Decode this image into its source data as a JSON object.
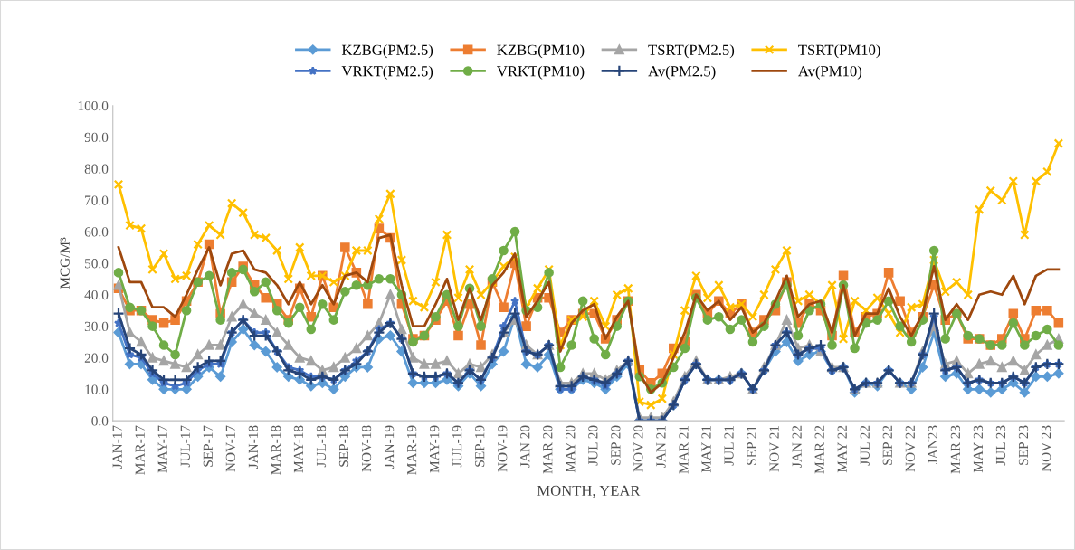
{
  "chart_data": {
    "type": "line",
    "xlabel": "MONTH, YEAR",
    "ylabel": "MCG/M³",
    "categories": [
      "JAN-17",
      null,
      "MAR-17",
      null,
      "MAY-17",
      null,
      "JUL-17",
      null,
      "SEP-17",
      null,
      "NOV-17",
      null,
      "JAN-18",
      null,
      "MAR-18",
      null,
      "MAY-18",
      null,
      "JUL-18",
      null,
      "SEP-18",
      null,
      "NOV-18",
      null,
      "JAN-19",
      null,
      "MAR-19",
      null,
      "MAY-19",
      null,
      "JUL-19",
      null,
      "SEP-19",
      null,
      "NOV-19",
      null,
      "JAN 20",
      null,
      "MAR 20",
      null,
      "MAY 20",
      null,
      "JUL 20",
      null,
      "SEP 20",
      null,
      "NOV 20",
      null,
      "JAN 21",
      null,
      "MAR 21",
      null,
      "MAY 21",
      null,
      "JUL 21",
      null,
      "SEP 21",
      null,
      "NOV 21",
      null,
      "JAN 22",
      null,
      "MAR 22",
      null,
      "MAY 22",
      null,
      "JUL 22",
      null,
      "SEP 22",
      null,
      "NOV 22",
      null,
      "JAN23",
      null,
      "MAR 23",
      null,
      "MAY 23",
      null,
      "JUL 23",
      null,
      "SEP 23",
      null,
      "NOV 23",
      null
    ],
    "ylim": [
      0,
      100
    ],
    "yticks": [
      {
        "value": 0,
        "label": "0.0"
      },
      {
        "value": 10,
        "label": "10.0"
      },
      {
        "value": 20,
        "label": "20.0"
      },
      {
        "value": 30,
        "label": "30.0"
      },
      {
        "value": 40,
        "label": "40.0"
      },
      {
        "value": 50,
        "label": "50.0"
      },
      {
        "value": 60,
        "label": "60.0"
      },
      {
        "value": 70,
        "label": "70.0"
      },
      {
        "value": 80,
        "label": "80.0"
      },
      {
        "value": 90,
        "label": "90.0"
      },
      {
        "value": 100,
        "label": "100.0"
      }
    ],
    "grid": false,
    "legend": "top",
    "series": [
      {
        "name": "KZBG(PM2.5)",
        "color": "#5b9bd5",
        "marker": "diamond",
        "values": [
          28,
          18,
          18,
          13,
          10,
          10,
          10,
          14,
          17,
          14,
          25,
          29,
          24,
          22,
          17,
          14,
          13,
          11,
          12,
          10,
          14,
          17,
          17,
          26,
          27,
          22,
          12,
          12,
          12,
          13,
          11,
          15,
          11,
          18,
          22,
          33,
          18,
          17,
          21,
          10,
          10,
          13,
          12,
          10,
          14,
          18,
          0,
          0,
          0,
          5,
          13,
          18,
          13,
          13,
          13,
          15,
          10,
          16,
          22,
          25,
          19,
          21,
          22,
          16,
          17,
          9,
          12,
          11,
          16,
          12,
          10,
          17,
          28,
          14,
          15,
          10,
          10,
          9,
          10,
          12,
          9,
          14,
          14,
          15
        ]
      },
      {
        "name": "KZBG(PM10)",
        "color": "#ed7d31",
        "marker": "square",
        "values": [
          42,
          35,
          35,
          32,
          31,
          32,
          38,
          44,
          56,
          34,
          44,
          49,
          43,
          39,
          37,
          32,
          42,
          33,
          46,
          36,
          55,
          47,
          37,
          61,
          58,
          37,
          26,
          27,
          32,
          38,
          27,
          37,
          24,
          44,
          36,
          50,
          30,
          39,
          39,
          28,
          32,
          34,
          34,
          26,
          32,
          38,
          16,
          12,
          15,
          23,
          25,
          40,
          34,
          38,
          34,
          37,
          28,
          32,
          35,
          44,
          31,
          37,
          35,
          27,
          46,
          28,
          33,
          34,
          47,
          38,
          28,
          33,
          43,
          32,
          34,
          26,
          26,
          24,
          26,
          34,
          26,
          35,
          35,
          31
        ]
      },
      {
        "name": "TSRT(PM2.5)",
        "color": "#a5a5a5",
        "marker": "triangle",
        "values": [
          43,
          28,
          25,
          20,
          19,
          18,
          17,
          21,
          24,
          24,
          33,
          37,
          34,
          32,
          28,
          24,
          20,
          19,
          16,
          17,
          20,
          23,
          27,
          31,
          40,
          29,
          20,
          18,
          18,
          19,
          15,
          18,
          17,
          21,
          28,
          32,
          24,
          21,
          24,
          12,
          12,
          15,
          15,
          13,
          16,
          19,
          1,
          1,
          1,
          6,
          14,
          19,
          13,
          13,
          14,
          15,
          10,
          17,
          24,
          32,
          23,
          24,
          22,
          17,
          17,
          10,
          12,
          12,
          16,
          12,
          12,
          22,
          30,
          18,
          19,
          15,
          18,
          19,
          17,
          19,
          16,
          21,
          24,
          26
        ]
      },
      {
        "name": "TSRT(PM10)",
        "color": "#ffc000",
        "marker": "x",
        "values": [
          75,
          62,
          61,
          48,
          53,
          45,
          46,
          56,
          62,
          59,
          69,
          66,
          59,
          58,
          54,
          45,
          55,
          46,
          46,
          44,
          46,
          54,
          54,
          64,
          72,
          51,
          38,
          36,
          44,
          59,
          39,
          48,
          40,
          44,
          49,
          52,
          36,
          42,
          48,
          24,
          32,
          33,
          38,
          30,
          40,
          42,
          6,
          5,
          7,
          21,
          35,
          46,
          39,
          43,
          36,
          37,
          33,
          40,
          48,
          54,
          38,
          40,
          37,
          43,
          26,
          38,
          35,
          39,
          34,
          28,
          36,
          37,
          51,
          41,
          44,
          40,
          67,
          73,
          70,
          76,
          59,
          76,
          79,
          88
        ]
      },
      {
        "name": "VRKT(PM2.5)",
        "color": "#4472c4",
        "marker": "star",
        "values": [
          31,
          21,
          20,
          15,
          12,
          11,
          12,
          16,
          18,
          18,
          28,
          32,
          28,
          28,
          22,
          17,
          16,
          14,
          14,
          13,
          16,
          19,
          22,
          29,
          31,
          26,
          15,
          14,
          14,
          15,
          12,
          16,
          13,
          20,
          30,
          38,
          22,
          21,
          24,
          10,
          10,
          14,
          13,
          11,
          15,
          19,
          0,
          0,
          0,
          5,
          13,
          18,
          13,
          13,
          13,
          15,
          10,
          16,
          24,
          28,
          21,
          23,
          23,
          16,
          17,
          10,
          12,
          12,
          16,
          12,
          12,
          21,
          33,
          16,
          17,
          12,
          13,
          12,
          12,
          14,
          12,
          17,
          18,
          18
        ]
      },
      {
        "name": "VRKT(PM10)",
        "color": "#70ad47",
        "marker": "circle",
        "values": [
          47,
          36,
          35,
          30,
          24,
          21,
          35,
          44,
          46,
          32,
          47,
          48,
          41,
          44,
          35,
          31,
          36,
          29,
          37,
          32,
          41,
          43,
          43,
          45,
          45,
          40,
          25,
          27,
          33,
          40,
          30,
          42,
          30,
          45,
          54,
          60,
          35,
          36,
          47,
          17,
          24,
          38,
          26,
          21,
          30,
          38,
          14,
          10,
          12,
          17,
          23,
          39,
          32,
          33,
          29,
          32,
          25,
          30,
          37,
          43,
          27,
          35,
          37,
          24,
          43,
          23,
          31,
          32,
          38,
          30,
          25,
          32,
          54,
          26,
          34,
          27,
          26,
          24,
          24,
          31,
          24,
          27,
          29,
          24
        ]
      },
      {
        "name": "Av(PM2.5)",
        "color": "#264478",
        "marker": "plus",
        "values": [
          34,
          23,
          21,
          16,
          13,
          13,
          13,
          17,
          19,
          19,
          28,
          32,
          27,
          27,
          22,
          16,
          15,
          13,
          14,
          13,
          16,
          18,
          22,
          28,
          31,
          26,
          15,
          14,
          14,
          15,
          12,
          16,
          13,
          20,
          28,
          34,
          22,
          21,
          24,
          11,
          11,
          14,
          13,
          12,
          15,
          19,
          0,
          0,
          0,
          5,
          13,
          18,
          13,
          13,
          13,
          15,
          10,
          16,
          24,
          28,
          21,
          23,
          24,
          16,
          17,
          10,
          12,
          12,
          16,
          12,
          12,
          21,
          34,
          16,
          17,
          12,
          13,
          12,
          12,
          14,
          12,
          17,
          18,
          18
        ]
      },
      {
        "name": "Av(PM10)",
        "color": "#9e480e",
        "marker": "none",
        "values": [
          55,
          44,
          44,
          36,
          36,
          33,
          40,
          48,
          55,
          43,
          53,
          54,
          48,
          47,
          43,
          37,
          44,
          37,
          43,
          37,
          46,
          47,
          44,
          58,
          59,
          43,
          30,
          30,
          37,
          45,
          32,
          42,
          32,
          43,
          47,
          53,
          33,
          38,
          44,
          22,
          31,
          35,
          37,
          26,
          33,
          38,
          15,
          9,
          12,
          20,
          28,
          40,
          35,
          38,
          32,
          36,
          28,
          31,
          38,
          46,
          33,
          37,
          38,
          28,
          43,
          27,
          34,
          34,
          42,
          33,
          27,
          34,
          49,
          32,
          37,
          32,
          40,
          41,
          40,
          46,
          37,
          46,
          48,
          48
        ]
      }
    ]
  }
}
